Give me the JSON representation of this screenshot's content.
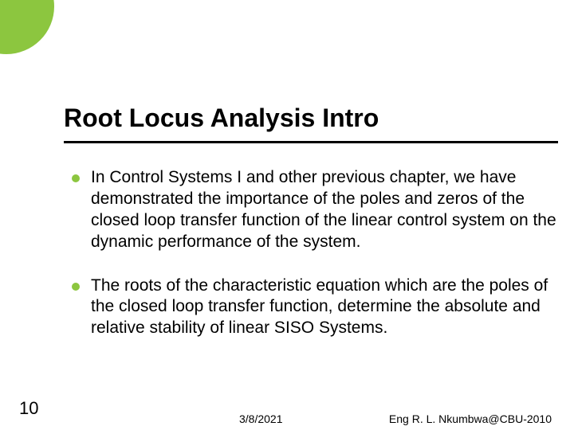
{
  "accent_color": "#8cc63f",
  "underline_color": "#000000",
  "background_color": "#ffffff",
  "text_color": "#000000",
  "title": "Root Locus Analysis Intro",
  "title_fontsize": 32,
  "body_fontsize": 21,
  "bullets": [
    "In Control Systems I and other previous chapter, we have demonstrated the importance of the poles and zeros of the closed loop transfer function of the linear control system on the dynamic performance of the system.",
    "The roots of the characteristic equation which are the poles of the closed loop transfer function, determine the absolute and relative stability of linear SISO Systems."
  ],
  "slide_number": "10",
  "footer": {
    "date": "3/8/2021",
    "author": "Eng R. L. Nkumbwa@CBU-2010"
  }
}
